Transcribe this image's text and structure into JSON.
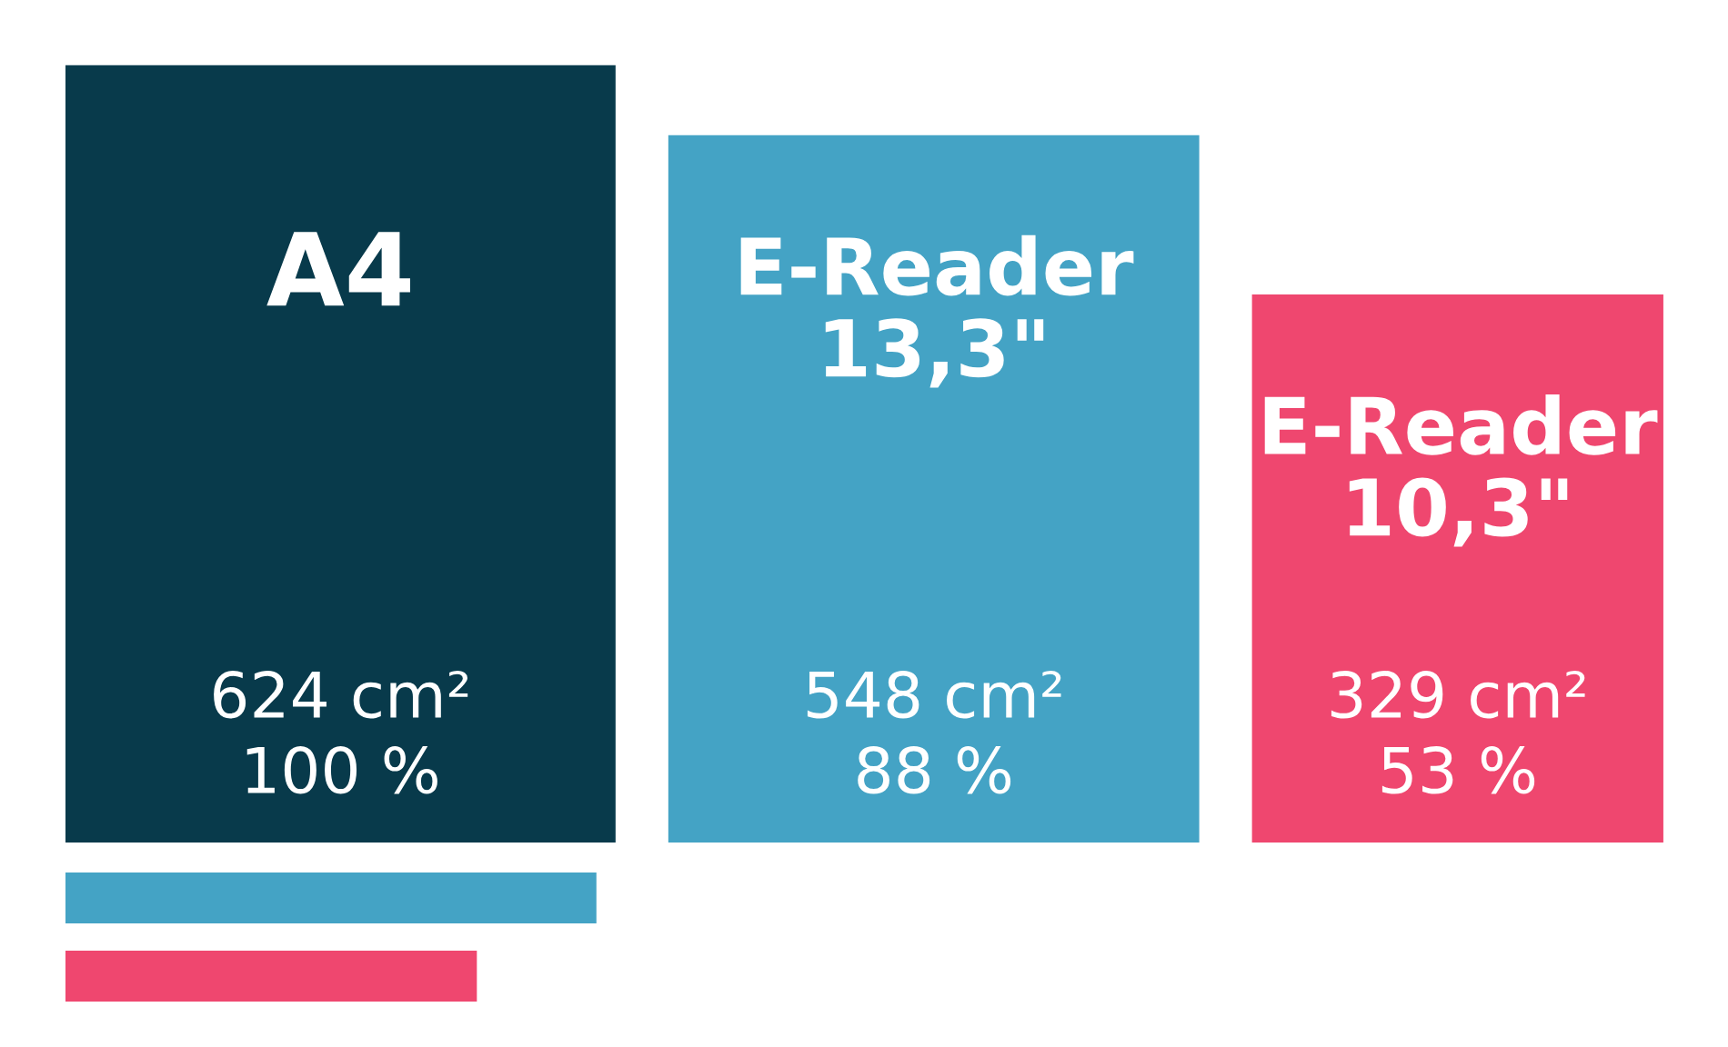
{
  "chart_data": {
    "type": "other",
    "categories": [
      "A4",
      "E-Reader\n13,3\"",
      "E-Reader\n10,3\""
    ],
    "values": [
      624,
      548,
      329
    ],
    "value_labels": [
      "624 cm²\n100 %",
      "548 cm²\n88 %",
      "329 cm²\n53 %"
    ],
    "colors": [
      "#083a4b",
      "#44a3c5",
      "#ef476f"
    ]
  }
}
